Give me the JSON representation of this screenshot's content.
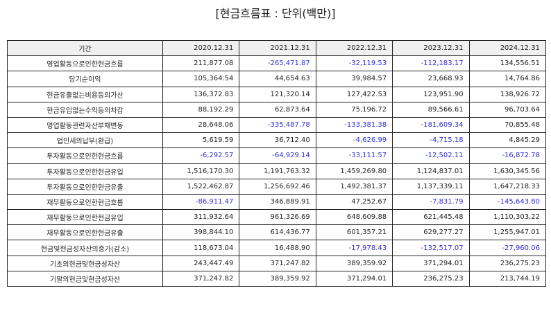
{
  "title": "[현금흐름표 : 단위(백만)]",
  "colors": {
    "negative": "#2e2ed8",
    "text": "#222222",
    "header_bg": "#f0f0f0"
  },
  "table": {
    "headers": [
      "기간",
      "2020.12.31",
      "2021.12.31",
      "2022.12.31",
      "2023.12.31",
      "2024.12.31"
    ],
    "rows": [
      {
        "label": "영업활동으로인한현금흐름",
        "values": [
          "211,877.08",
          "-265,471.87",
          "-32,119.53",
          "-112,183.17",
          "134,556.51"
        ]
      },
      {
        "label": "당기순이익",
        "values": [
          "105,364.54",
          "44,654.63",
          "39,984.57",
          "23,668.93",
          "14,764.86"
        ]
      },
      {
        "label": "현금유출없는비용등의가산",
        "values": [
          "136,372.83",
          "121,320.14",
          "127,422.53",
          "123,951.90",
          "138,926.72"
        ]
      },
      {
        "label": "현금유입없는수익등의차감",
        "values": [
          "88,192.29",
          "62,873.64",
          "75,196.72",
          "89,566.61",
          "96,703.64"
        ]
      },
      {
        "label": "영업활동관련자산부채변동",
        "values": [
          "28,648.06",
          "-335,487.78",
          "-133,381.38",
          "-181,609.34",
          "70,855.48"
        ]
      },
      {
        "label": "법인세의납부(환급)",
        "values": [
          "5,619.59",
          "36,712.40",
          "-4,626.99",
          "-4,715.18",
          "4,845.29"
        ]
      },
      {
        "label": "투자활동으로인한현금흐름",
        "values": [
          "-6,292.57",
          "-64,929.14",
          "-33,111.57",
          "-12,502.11",
          "-16,872.78"
        ]
      },
      {
        "label": "투자활동으로인한현금유입",
        "values": [
          "1,516,170.30",
          "1,191,763.32",
          "1,459,269.80",
          "1,124,837.01",
          "1,630,345.56"
        ]
      },
      {
        "label": "투자활동으로인한현금유출",
        "values": [
          "1,522,462.87",
          "1,256,692.46",
          "1,492,381.37",
          "1,137,339.11",
          "1,647,218.33"
        ]
      },
      {
        "label": "재무활동으로인한현금흐름",
        "values": [
          "-86,911.47",
          "346,889.91",
          "47,252.67",
          "-7,831.79",
          "-145,643.80"
        ]
      },
      {
        "label": "재무활동으로인한현금유입",
        "values": [
          "311,932.64",
          "961,326.69",
          "648,609.88",
          "621,445.48",
          "1,110,303.22"
        ]
      },
      {
        "label": "재무활동으로인한현금유출",
        "values": [
          "398,844.10",
          "614,436.77",
          "601,357.21",
          "629,277.27",
          "1,255,947.01"
        ]
      },
      {
        "label": "현금및현금성자산의증가(감소)",
        "values": [
          "118,673.04",
          "16,488.90",
          "-17,978.43",
          "-132,517.07",
          "-27,960.06"
        ]
      },
      {
        "label": "기초의현금및현금성자산",
        "values": [
          "243,447.49",
          "371,247.82",
          "389,359.92",
          "371,294.01",
          "236,275.23"
        ]
      },
      {
        "label": "기말의현금및현금성자산",
        "values": [
          "371,247.82",
          "389,359.92",
          "371,294.01",
          "236,275.23",
          "213,744.19"
        ]
      }
    ]
  }
}
